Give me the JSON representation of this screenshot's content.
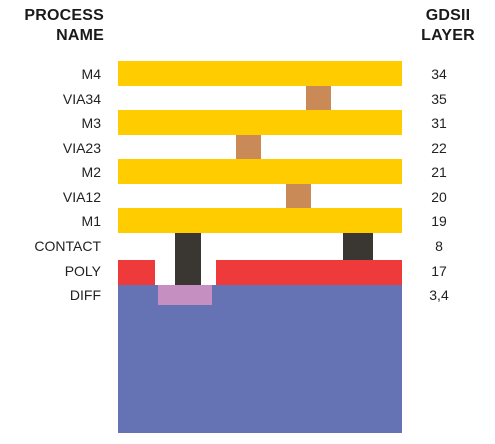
{
  "header": {
    "left_line1": "PROCESS",
    "left_line2": "NAME",
    "right_line1": "GDSII",
    "right_line2": "LAYER"
  },
  "layers": [
    {
      "name": "M4",
      "gds": "34"
    },
    {
      "name": "VIA34",
      "gds": "35"
    },
    {
      "name": "M3",
      "gds": "31"
    },
    {
      "name": "VIA23",
      "gds": "22"
    },
    {
      "name": "M2",
      "gds": "21"
    },
    {
      "name": "VIA12",
      "gds": "20"
    },
    {
      "name": "M1",
      "gds": "19"
    },
    {
      "name": "CONTACT",
      "gds": "8"
    },
    {
      "name": "POLY",
      "gds": "17"
    },
    {
      "name": "DIFF",
      "gds": "3,4"
    }
  ],
  "colors": {
    "metal": "#ffcc00",
    "via": "#c98a58",
    "contact": "#3a3631",
    "poly": "#ee3a3a",
    "diff": "#6573b5",
    "implant": "#c68fc2"
  }
}
